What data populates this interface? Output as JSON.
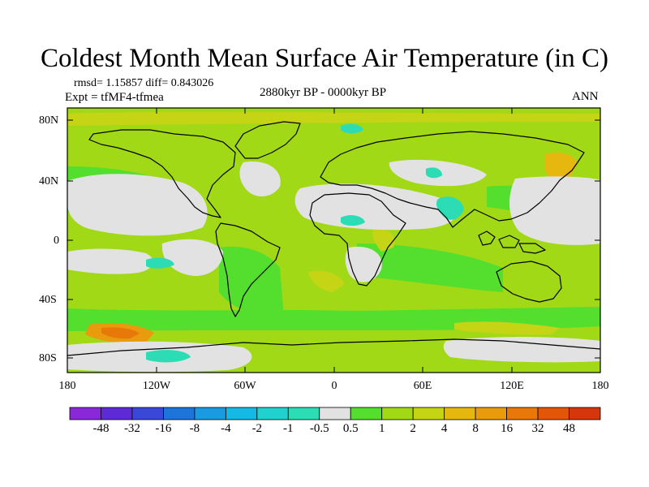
{
  "title": "Coldest Month Mean Surface Air Temperature (in C)",
  "stats": "rmsd= 1.15857  diff= 0.843026",
  "experiment": "Expt = tfMF4-tfmea",
  "period": "2880kyr BP - 0000kyr BP",
  "season": "ANN",
  "map": {
    "projection": "cylindrical equidistant",
    "lon_range": [
      -180,
      180
    ],
    "lat_range": [
      -90,
      90
    ],
    "lat_ticks": [
      "80N",
      "40N",
      "0",
      "40S",
      "80S"
    ],
    "lon_ticks": [
      "180",
      "120W",
      "60W",
      "0",
      "60E",
      "120E",
      "180"
    ]
  },
  "colorbar": {
    "colors": [
      "#8a28d9",
      "#5d2ad6",
      "#3a48d8",
      "#1d74d9",
      "#1a9ae0",
      "#16b9e5",
      "#21d1cf",
      "#2bdcb5",
      "#e2e2e2",
      "#54de2e",
      "#a2d917",
      "#c6d416",
      "#e5b70f",
      "#e99a0d",
      "#e9780a",
      "#e35507",
      "#d6360c"
    ],
    "labels": [
      "-48",
      "-32",
      "-16",
      "-8",
      "-4",
      "-2",
      "-1",
      "-0.5",
      "0.5",
      "1",
      "2",
      "4",
      "8",
      "16",
      "32",
      "48"
    ]
  }
}
